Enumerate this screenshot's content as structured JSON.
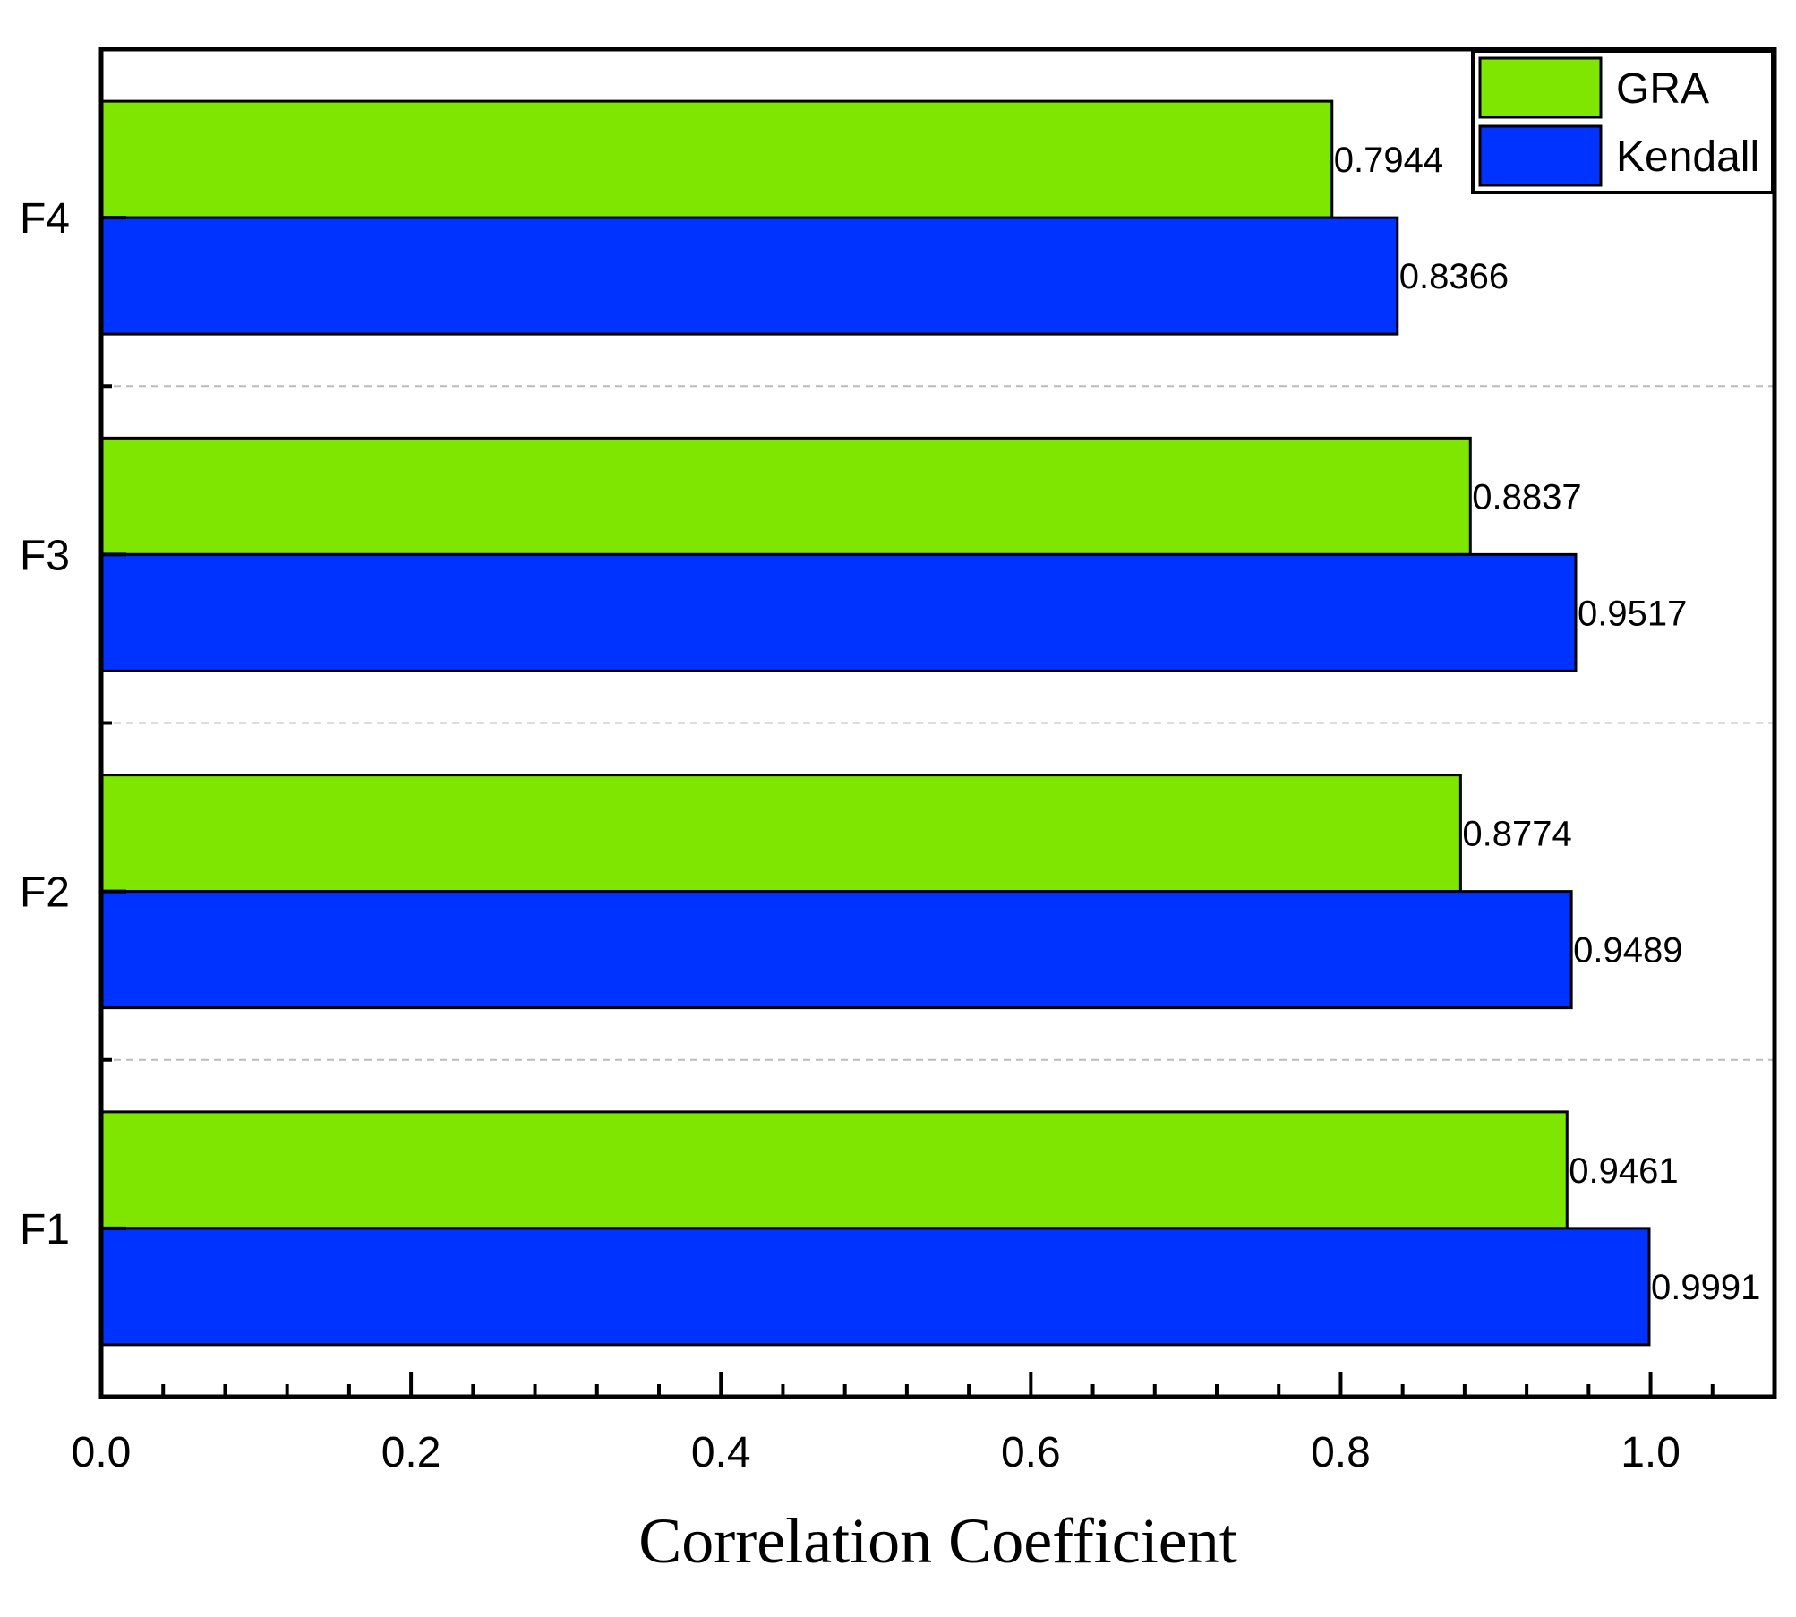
{
  "chart_data": {
    "type": "bar",
    "orientation": "horizontal",
    "categories": [
      "F1",
      "F2",
      "F3",
      "F4"
    ],
    "series": [
      {
        "name": "GRA",
        "color": "#7ee600",
        "values": [
          0.9461,
          0.8774,
          0.8837,
          0.7944
        ],
        "labels": [
          "0.9461",
          "0.8774",
          "0.8837",
          "0.7944"
        ]
      },
      {
        "name": "Kendall",
        "color": "#0033ff",
        "values": [
          0.9991,
          0.9489,
          0.9517,
          0.8366
        ],
        "labels": [
          "0.9991",
          "0.9489",
          "0.9517",
          "0.8366"
        ]
      }
    ],
    "title": "",
    "xlabel": "Correlation Coefficient",
    "ylabel": "",
    "xlim": [
      0,
      1.08
    ],
    "xticks": [
      0.0,
      0.2,
      0.4,
      0.6,
      0.8,
      1.0
    ],
    "xtick_labels": [
      "0.0",
      "0.2",
      "0.4",
      "0.6",
      "0.8",
      "1.0"
    ],
    "grid": "dashed horizontal separators between categories",
    "legend_position": "top-right"
  }
}
